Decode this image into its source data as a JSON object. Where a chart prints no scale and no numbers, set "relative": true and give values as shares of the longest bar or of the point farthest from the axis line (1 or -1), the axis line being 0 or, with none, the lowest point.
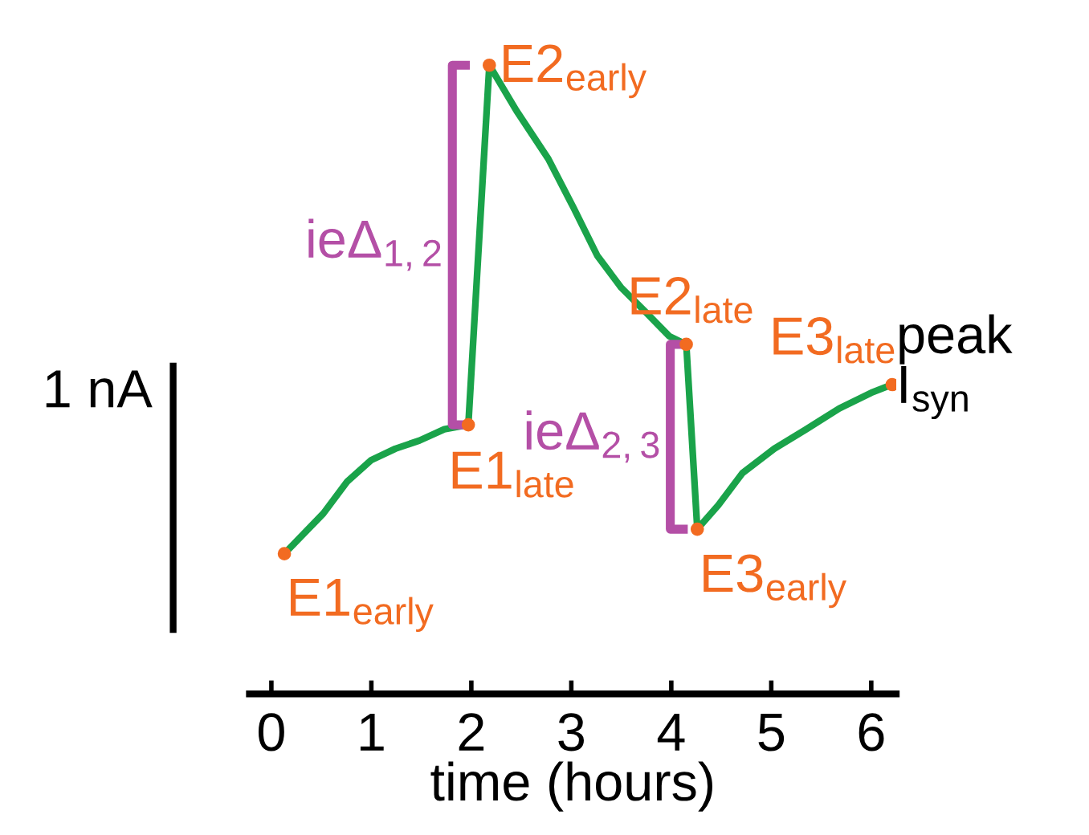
{
  "chart_data": {
    "type": "line",
    "relative": true,
    "xlabel": "time (hours)",
    "ylabel": "peak\nI$_{syn}$",
    "xlim": [
      -0.22,
      6.25
    ],
    "xticks": [
      0,
      1,
      2,
      3,
      4,
      5,
      6
    ],
    "grid": false,
    "legend": false,
    "marker": "none",
    "line_style": "solid",
    "series": [
      {
        "color": "#1aa34a",
        "x": [
          0.13,
          0.52,
          0.76,
          1.0,
          1.24,
          1.48,
          1.73,
          1.97,
          2.18,
          2.45,
          2.77,
          3.02,
          3.26,
          3.5,
          3.74,
          3.98,
          4.15,
          4.26,
          4.47,
          4.71,
          5.03,
          5.35,
          5.68,
          6.0,
          6.21
        ],
        "values": [
          0.223,
          0.287,
          0.338,
          0.372,
          0.39,
          0.403,
          0.421,
          0.428,
          1.0,
          0.928,
          0.851,
          0.774,
          0.697,
          0.646,
          0.608,
          0.569,
          0.556,
          0.262,
          0.3,
          0.351,
          0.39,
          0.421,
          0.454,
          0.479,
          0.492
        ]
      }
    ],
    "annotations": [
      {
        "text": "E1$_{early}$",
        "x": 0.13,
        "y": 0.223
      },
      {
        "text": "E1$_{late}$",
        "x": 1.97,
        "y": 0.428
      },
      "ieΔ$_{1,2}$",
      {
        "text": "E2$_{early}$",
        "x": 2.18,
        "y": 1.0
      },
      {
        "text": "E2$_{late}$",
        "x": 4.15,
        "y": 0.556
      },
      "ieΔ$_{2,3}$",
      {
        "text": "E3$_{early}$",
        "x": 4.26,
        "y": 0.262
      },
      {
        "text": "E3$_{late}$",
        "x": 6.21,
        "y": 0.492
      },
      "1 nA"
    ]
  }
}
